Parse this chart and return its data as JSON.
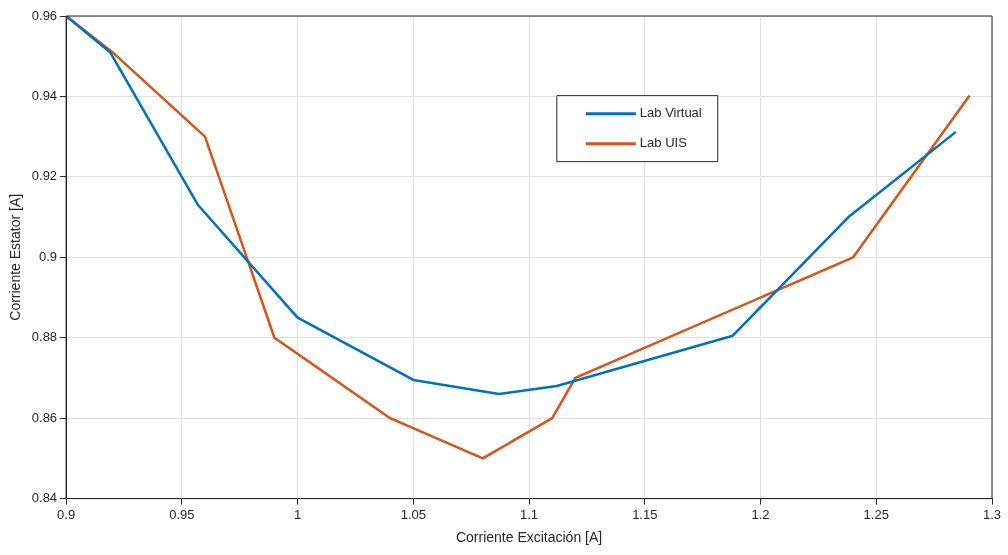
{
  "chart_data": {
    "type": "line",
    "xlabel": "Corriente Excitación [A]",
    "ylabel": "Corriente Estator [A]",
    "xlim": [
      0.9,
      1.3
    ],
    "xticks": [
      0.9,
      0.95,
      1,
      1.05,
      1.1,
      1.15,
      1.2,
      1.25,
      1.3
    ],
    "ylim": [
      0.84,
      0.96
    ],
    "yticks": [
      0.84,
      0.86,
      0.88,
      0.9,
      0.92,
      0.94,
      0.96
    ],
    "grid": true,
    "legend": "top right",
    "marker": "none",
    "line_style": "solid",
    "series": [
      {
        "name": "Lab Virtual",
        "color": "#0072bd",
        "x": [
          0.9,
          0.919,
          0.957,
          1.0,
          1.05,
          1.087,
          1.112,
          1.188,
          1.221,
          1.238,
          1.284
        ],
        "values": [
          0.96,
          0.951,
          0.913,
          0.885,
          0.8695,
          0.866,
          0.868,
          0.8805,
          0.9,
          0.91,
          0.931
        ]
      },
      {
        "name": "Lab UIS",
        "color": "#d95319",
        "x": [
          0.9,
          0.92,
          0.96,
          0.99,
          1.04,
          1.08,
          1.11,
          1.12,
          1.24,
          1.29
        ],
        "values": [
          0.96,
          0.951,
          0.93,
          0.88,
          0.86,
          0.85,
          0.86,
          0.87,
          0.9,
          0.94
        ]
      }
    ]
  }
}
